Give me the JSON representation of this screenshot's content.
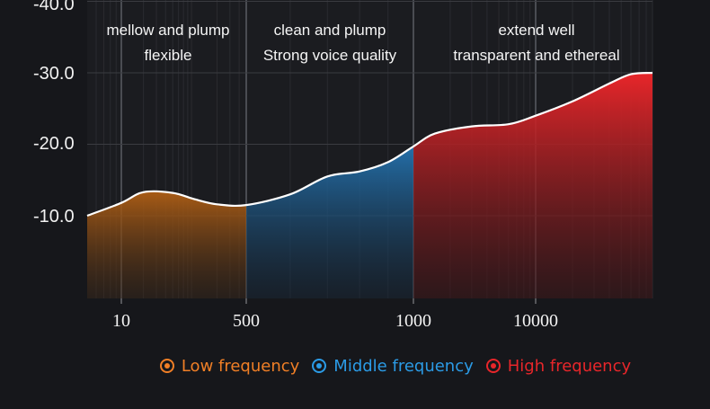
{
  "chart_data": {
    "type": "area",
    "title": "",
    "xlabel": "",
    "ylabel": "",
    "y_tick_labels": [
      "-40.0",
      "-30.0",
      "-20.0",
      "-10.0"
    ],
    "x_tick_labels": [
      "10",
      "500",
      "1000",
      "10000"
    ],
    "annotations": [
      [
        "mellow and plump",
        "flexible"
      ],
      [
        "clean and plump",
        "Strong voice quality"
      ],
      [
        "extend well",
        "transparent and ethereal"
      ]
    ],
    "series": [
      {
        "name": "Low frequency",
        "color": "#f07f26",
        "x": [
          5,
          10,
          20,
          50,
          100,
          200,
          500
        ],
        "y": [
          -10.0,
          -11.8,
          -13.3,
          -13.2,
          -12.3,
          -11.6,
          -11.5
        ]
      },
      {
        "name": "Middle frequency",
        "color": "#2b9be6",
        "x": [
          500,
          600,
          700,
          800,
          900,
          1000
        ],
        "y": [
          -11.5,
          -13.0,
          -15.5,
          -16.2,
          -17.5,
          -19.7
        ]
      },
      {
        "name": "High frequency",
        "color": "#e8262a",
        "x": [
          1000,
          1500,
          3000,
          6000,
          10000,
          20000,
          40000,
          60000,
          90000
        ],
        "y": [
          -19.7,
          -21.5,
          -22.5,
          -22.8,
          -24.0,
          -26.0,
          -28.5,
          -29.8,
          -30.0
        ]
      }
    ],
    "ylim": [
      -42,
      0
    ],
    "grid": true,
    "legend_position": "bottom-center"
  }
}
